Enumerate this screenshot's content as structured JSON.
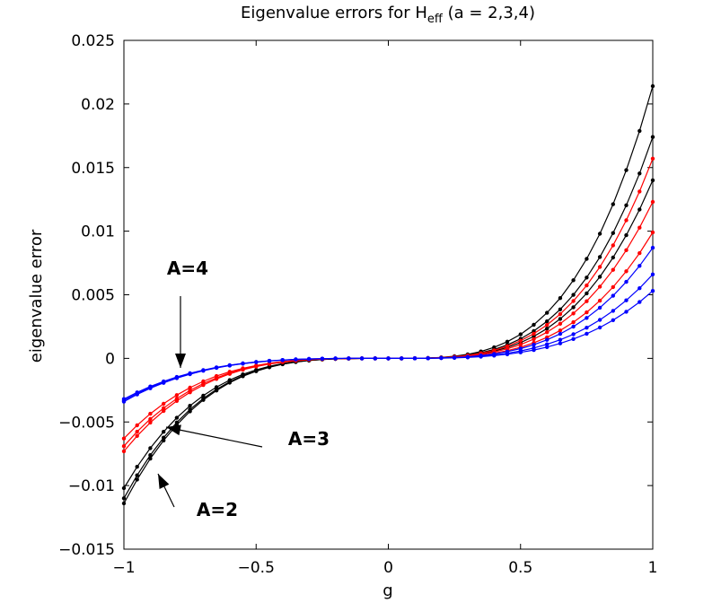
{
  "chart_data": {
    "type": "line",
    "title_main": "Eigenvalue errors for H",
    "title_sub": "eff",
    "title_rest": " (a = 2,3,4)",
    "xlabel": "g",
    "ylabel": "eigenvalue error",
    "xlim": [
      -1,
      1
    ],
    "ylim": [
      -0.015,
      0.025
    ],
    "x_ticks": [
      -1,
      -0.5,
      0,
      0.5,
      1
    ],
    "x_tick_labels": [
      "−1",
      "−0.5",
      "0",
      "0.5",
      "1"
    ],
    "y_ticks": [
      -0.015,
      -0.01,
      -0.005,
      0,
      0.005,
      0.01,
      0.015,
      0.02,
      0.025
    ],
    "y_tick_labels": [
      "−0.015",
      "−0.01",
      "−0.005",
      "0",
      "0.005",
      "0.01",
      "0.015",
      "0.02",
      "0.025"
    ],
    "grid": false,
    "x_samples": 41,
    "series": [
      {
        "group": "A=2",
        "color": "#000000",
        "neg_end": -0.0114,
        "pos_end": 0.0214
      },
      {
        "group": "A=2",
        "color": "#000000",
        "neg_end": -0.011,
        "pos_end": 0.0174
      },
      {
        "group": "A=2",
        "color": "#000000",
        "neg_end": -0.0102,
        "pos_end": 0.014
      },
      {
        "group": "A=3",
        "color": "#ff0000",
        "neg_end": -0.0073,
        "pos_end": 0.0157
      },
      {
        "group": "A=3",
        "color": "#ff0000",
        "neg_end": -0.0069,
        "pos_end": 0.0123
      },
      {
        "group": "A=3",
        "color": "#ff0000",
        "neg_end": -0.0063,
        "pos_end": 0.0099
      },
      {
        "group": "A=4",
        "color": "#0000ff",
        "neg_end": -0.0034,
        "pos_end": 0.0087
      },
      {
        "group": "A=4",
        "color": "#0000ff",
        "neg_end": -0.0033,
        "pos_end": 0.0066
      },
      {
        "group": "A=4",
        "color": "#0000ff",
        "neg_end": -0.0032,
        "pos_end": 0.0053
      }
    ],
    "annotations": [
      {
        "text": "A=4",
        "points_to_x": -0.78,
        "points_to_y": -0.0004
      },
      {
        "text": "A=3",
        "points_to_x": -0.82,
        "points_to_y": -0.0052
      },
      {
        "text": "A=2",
        "points_to_x": -0.87,
        "points_to_y": -0.0094
      }
    ]
  }
}
